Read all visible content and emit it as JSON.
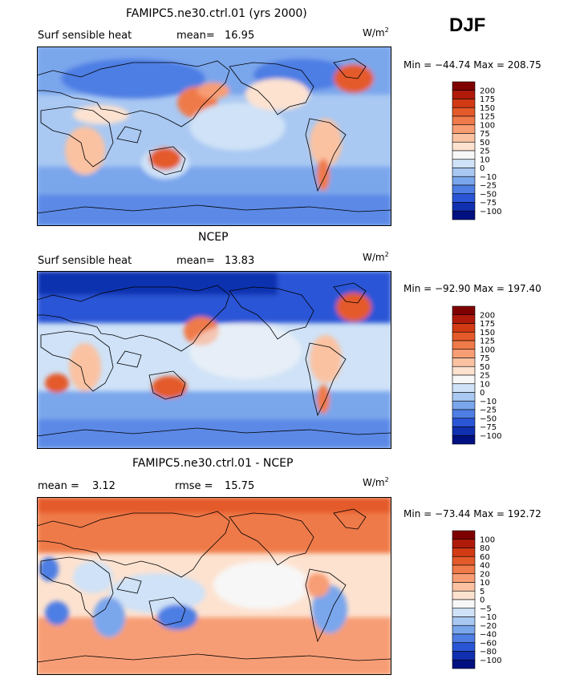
{
  "season": "DJF",
  "units_base": "W/m",
  "units_exp": "2",
  "chart_data": [
    {
      "type": "heatmap",
      "title": "FAMIPC5.ne30.ctrl.01 (yrs 2000)",
      "variable": "Surf sensible heat",
      "stat1_label": "mean=",
      "stat1_value": "16.95",
      "min_label": "Min =",
      "min_value": "−44.74",
      "max_label": "Max =",
      "max_value": "208.75",
      "colorbar_levels": [
        "200",
        "175",
        "150",
        "125",
        "100",
        "75",
        "50",
        "25",
        "10",
        "0",
        "−10",
        "−25",
        "−50",
        "−75",
        "−100"
      ],
      "colorbar_colors": [
        "#7f0000",
        "#b01a0a",
        "#d13a14",
        "#e45a2a",
        "#ef7a4a",
        "#f79d74",
        "#fbc2a2",
        "#fde2d0",
        "#f7f7f7",
        "#cfe2f7",
        "#a9c8f2",
        "#7aa6ec",
        "#4e7ee4",
        "#2a55d6",
        "#1030b0",
        "#001080"
      ]
    },
    {
      "type": "heatmap",
      "title": "NCEP",
      "variable": "Surf sensible heat",
      "stat1_label": "mean=",
      "stat1_value": "13.83",
      "min_label": "Min =",
      "min_value": "−92.90",
      "max_label": "Max =",
      "max_value": "197.40",
      "colorbar_levels": [
        "200",
        "175",
        "150",
        "125",
        "100",
        "75",
        "50",
        "25",
        "10",
        "0",
        "−10",
        "−25",
        "−50",
        "−75",
        "−100"
      ],
      "colorbar_colors": [
        "#7f0000",
        "#b01a0a",
        "#d13a14",
        "#e45a2a",
        "#ef7a4a",
        "#f79d74",
        "#fbc2a2",
        "#fde2d0",
        "#f7f7f7",
        "#cfe2f7",
        "#a9c8f2",
        "#7aa6ec",
        "#4e7ee4",
        "#2a55d6",
        "#1030b0",
        "#001080"
      ]
    },
    {
      "type": "heatmap",
      "title": "FAMIPC5.ne30.ctrl.01 - NCEP",
      "stat1_label": "mean =",
      "stat1_value": "3.12",
      "stat2_label": "rmse =",
      "stat2_value": "15.75",
      "min_label": "Min =",
      "min_value": "−73.44",
      "max_label": "Max =",
      "max_value": "192.72",
      "colorbar_levels": [
        "100",
        "80",
        "60",
        "40",
        "20",
        "10",
        "5",
        "0",
        "−5",
        "−10",
        "−20",
        "−40",
        "−60",
        "−80",
        "−100"
      ],
      "colorbar_colors": [
        "#7f0000",
        "#b01a0a",
        "#d13a14",
        "#e45a2a",
        "#ef7a4a",
        "#f79d74",
        "#fbc2a2",
        "#fde2d0",
        "#f7f7f7",
        "#cfe2f7",
        "#a9c8f2",
        "#7aa6ec",
        "#4e7ee4",
        "#2a55d6",
        "#1030b0",
        "#001080"
      ]
    }
  ]
}
